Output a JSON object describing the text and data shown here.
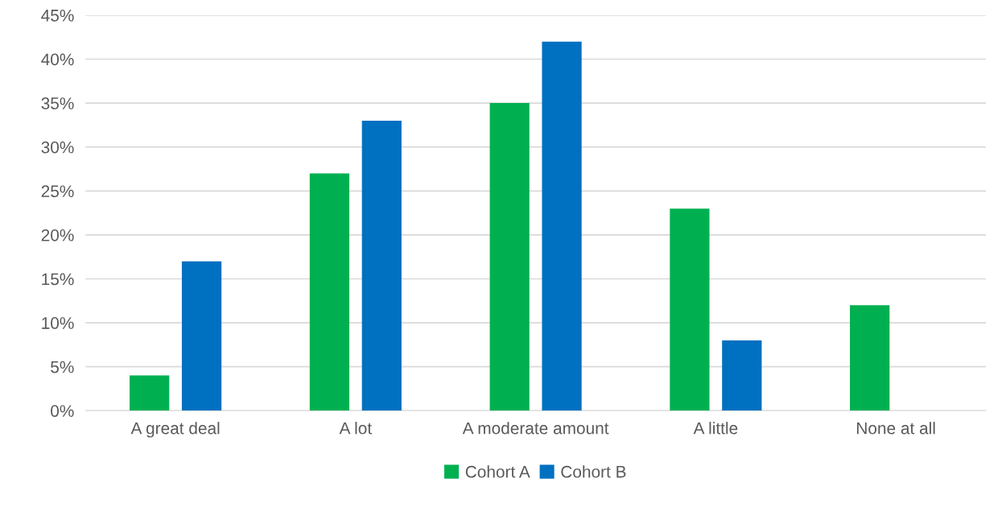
{
  "chart_data": {
    "type": "bar",
    "categories": [
      "A great deal",
      "A lot",
      "A moderate amount",
      "A little",
      "None at all"
    ],
    "series": [
      {
        "name": "Cohort A",
        "color": "#00b050",
        "values": [
          4,
          27,
          35,
          23,
          12
        ]
      },
      {
        "name": "Cohort B",
        "color": "#0070c0",
        "values": [
          17,
          33,
          42,
          8,
          0
        ]
      }
    ],
    "ylim": [
      0,
      45
    ],
    "yticks": [
      {
        "value": 0,
        "label": "0%"
      },
      {
        "value": 5,
        "label": "5%"
      },
      {
        "value": 10,
        "label": "10%"
      },
      {
        "value": 15,
        "label": "15%"
      },
      {
        "value": 20,
        "label": "20%"
      },
      {
        "value": 25,
        "label": "25%"
      },
      {
        "value": 30,
        "label": "30%"
      },
      {
        "value": 35,
        "label": "35%"
      },
      {
        "value": 40,
        "label": "40%"
      },
      {
        "value": 45,
        "label": "45%"
      }
    ],
    "grid": "y",
    "legend": "bottom"
  }
}
